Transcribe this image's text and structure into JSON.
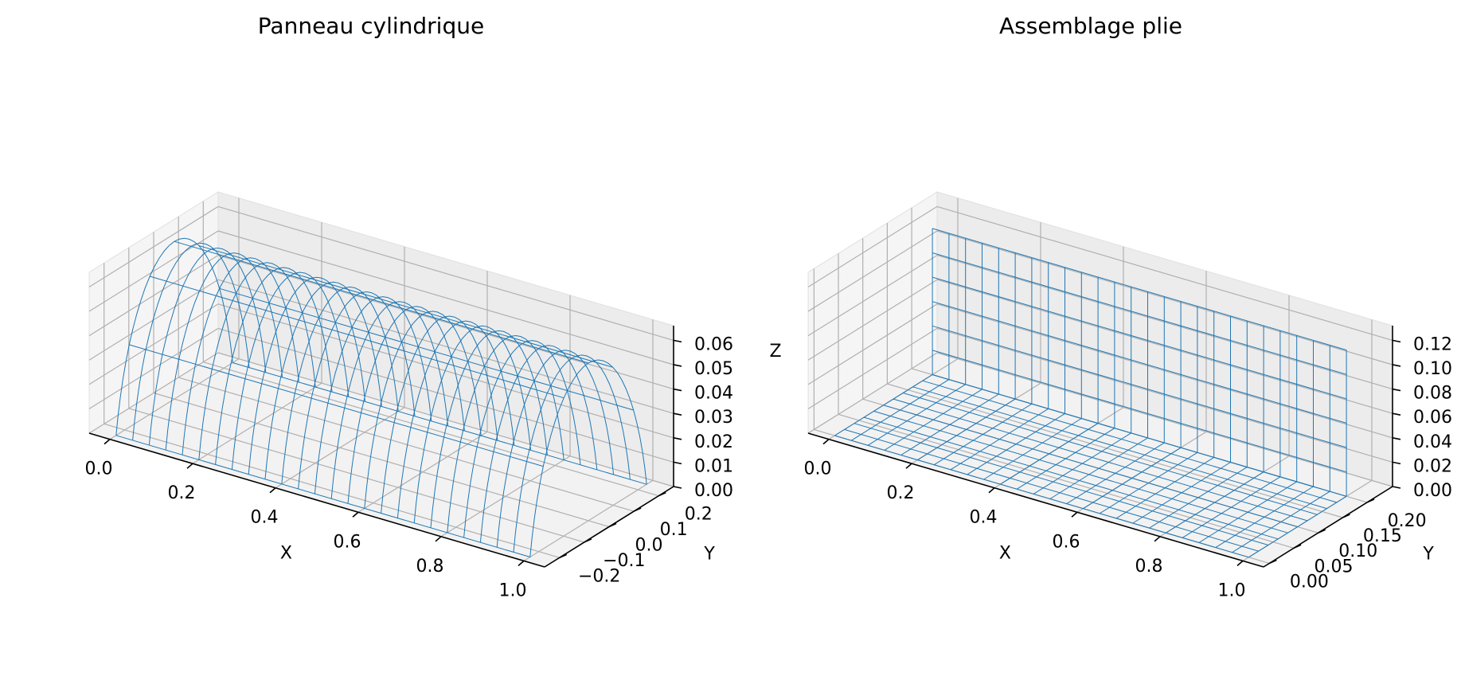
{
  "figure": {
    "background": "#ffffff",
    "wire_color": "#1f77b4"
  },
  "chart_data": [
    {
      "type": "surface",
      "title": "Panneau cylindrique",
      "xlabel": "X",
      "ylabel": "Y",
      "zlabel": "Z",
      "x_ticks": [
        "0.0",
        "0.2",
        "0.4",
        "0.6",
        "0.8",
        "1.0"
      ],
      "y_ticks": [
        "−0.2",
        "−0.1",
        "0.0",
        "0.1",
        "0.2"
      ],
      "z_ticks": [
        "0.00",
        "0.01",
        "0.02",
        "0.03",
        "0.04",
        "0.05",
        "0.06"
      ],
      "xlim": [
        -0.05,
        1.05
      ],
      "ylim": [
        -0.26,
        0.26
      ],
      "zlim": [
        0,
        0.066
      ],
      "grid": true,
      "surface": {
        "shape": "cylindrical panel",
        "radius": 0.25,
        "half_angle_deg": 70,
        "x_range": [
          0,
          1
        ],
        "x_lines": 26,
        "arc_lines": 6
      }
    },
    {
      "type": "surface",
      "title": "Assemblage plie",
      "xlabel": "X",
      "ylabel": "Y",
      "zlabel": "Z",
      "x_ticks": [
        "0.0",
        "0.2",
        "0.4",
        "0.6",
        "0.8",
        "1.0"
      ],
      "y_ticks": [
        "0.00",
        "0.05",
        "0.10",
        "0.15",
        "0.20"
      ],
      "z_ticks": [
        "0.00",
        "0.02",
        "0.04",
        "0.06",
        "0.08",
        "0.10",
        "0.12"
      ],
      "xlim": [
        -0.05,
        1.05
      ],
      "ylim": [
        -0.012,
        0.252
      ],
      "zlim": [
        0,
        0.132
      ],
      "grid": true,
      "surface": {
        "shape": "folded assembly (floor + vertical flange)",
        "x_range": [
          0,
          1
        ],
        "floor_y_range": [
          0,
          0.2
        ],
        "flange_y": 0.2,
        "flange_height": 0.12,
        "x_lines": 26,
        "floor_lines": 10,
        "flange_lines": 6
      }
    }
  ]
}
